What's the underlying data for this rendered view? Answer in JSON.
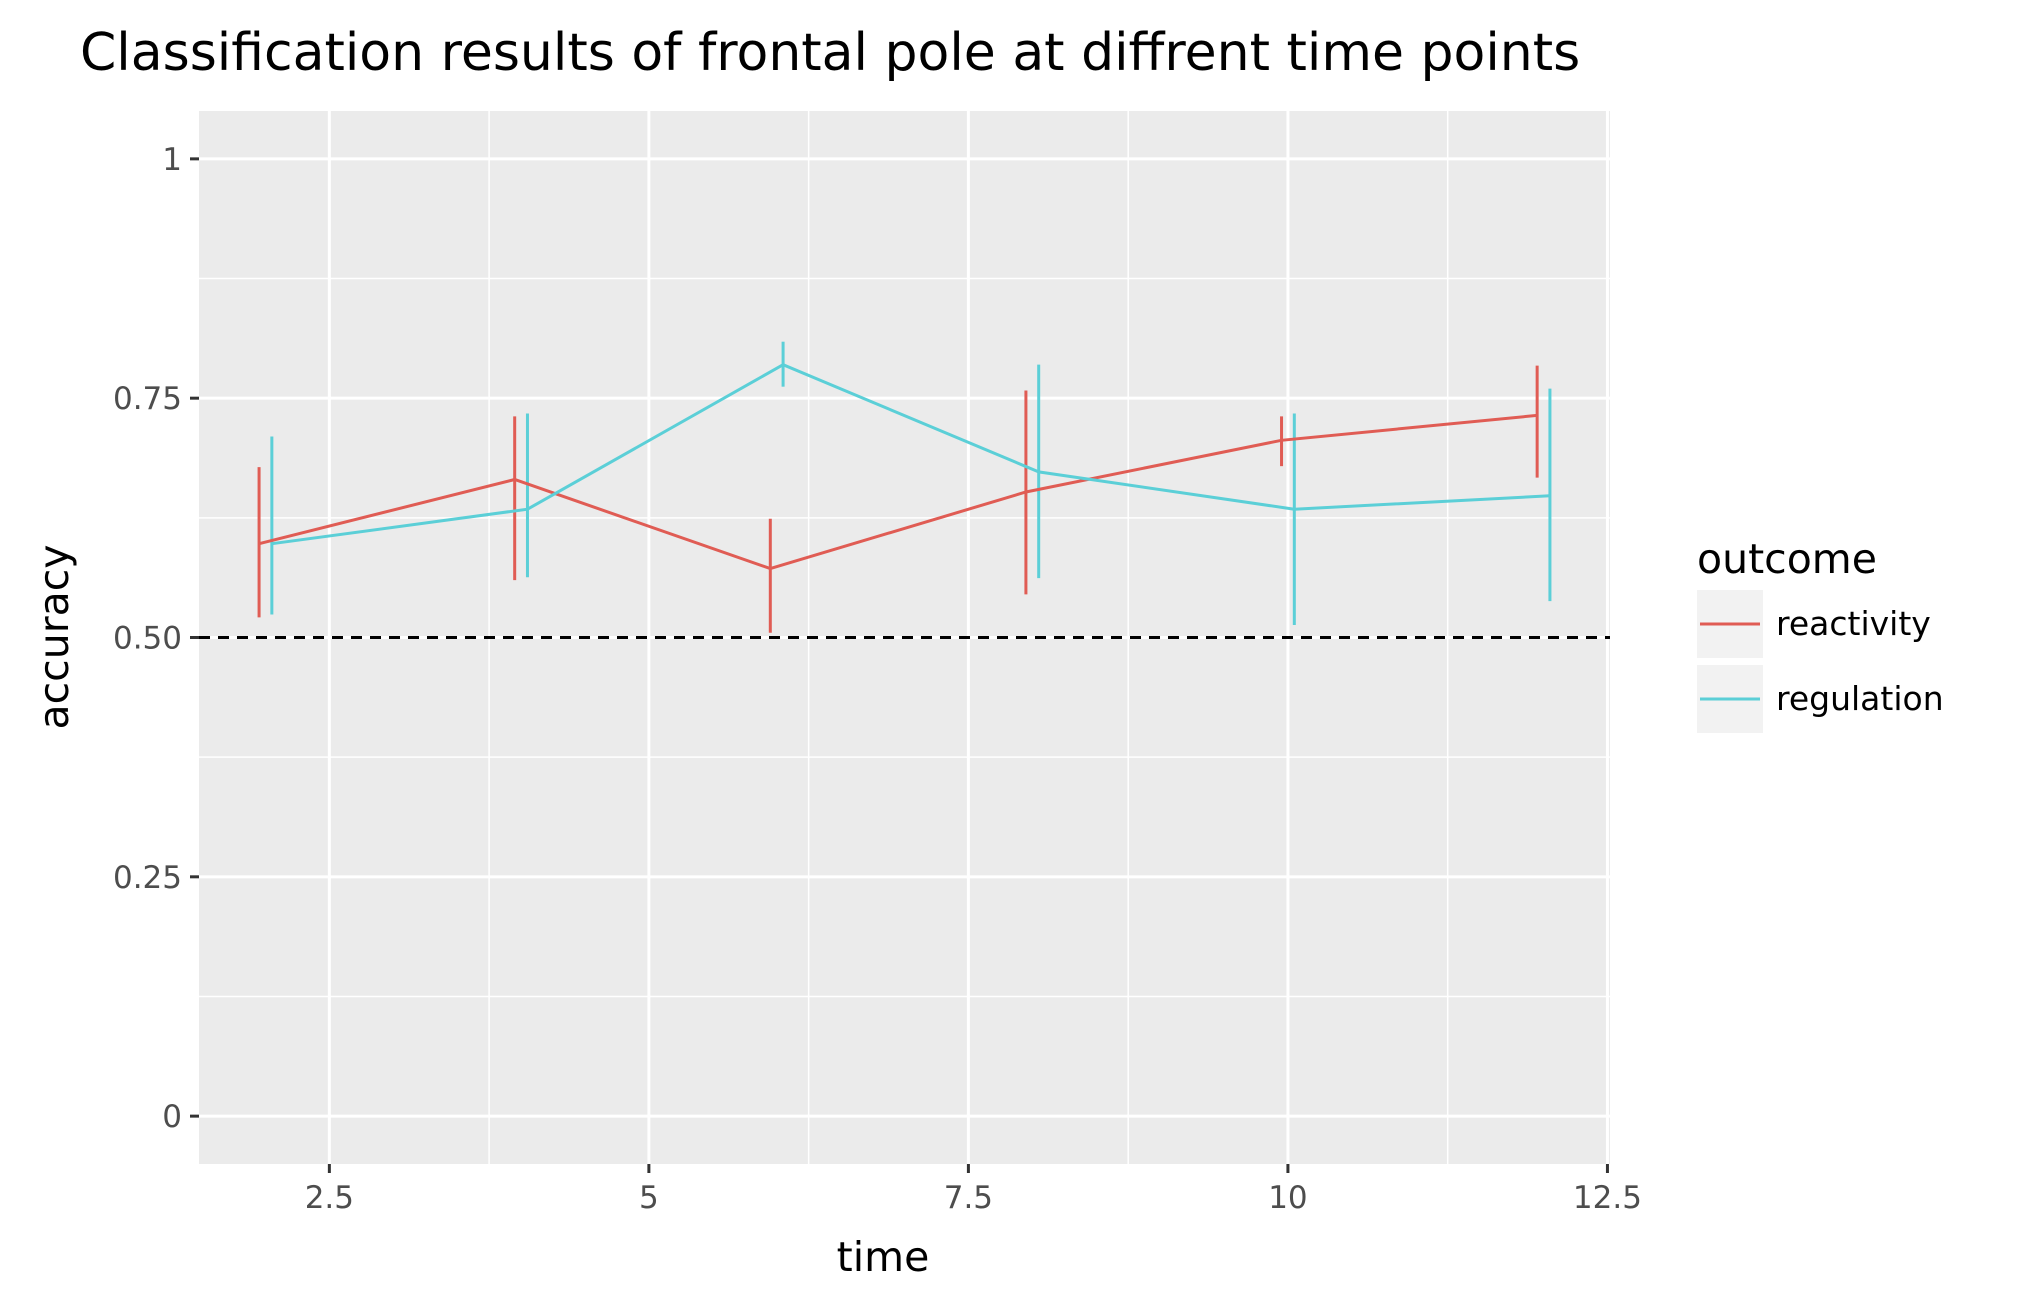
{
  "chart_data": {
    "type": "line",
    "title": "Classification results of frontal pole at diffrent time points",
    "xlabel": "time",
    "ylabel": "accuracy",
    "xlim": [
      1.48,
      12.52
    ],
    "ylim": [
      -0.05,
      1.05
    ],
    "x_ticks": [
      2.5,
      5,
      7.5,
      10,
      12.5
    ],
    "x_tick_labels": [
      "2.5",
      "5",
      "7.5",
      "10",
      "12.5"
    ],
    "y_ticks": [
      0,
      0.25,
      0.5,
      0.75,
      1
    ],
    "y_tick_labels": [
      "0",
      "0.25",
      "0.50",
      "0.75",
      "1"
    ],
    "grid": true,
    "reference_line": {
      "y": 0.5,
      "style": "dashed",
      "color": "#000000"
    },
    "legend": {
      "title": "outcome",
      "position": "right"
    },
    "series": [
      {
        "name": "reactivity",
        "color": "#e05c54",
        "x": [
          1.95,
          3.95,
          5.95,
          7.95,
          9.95,
          11.95
        ],
        "y": [
          0.598,
          0.665,
          0.572,
          0.652,
          0.706,
          0.732
        ],
        "ymin": [
          0.521,
          0.56,
          0.505,
          0.545,
          0.679,
          0.667
        ],
        "ymax": [
          0.678,
          0.731,
          0.624,
          0.758,
          0.731,
          0.784
        ]
      },
      {
        "name": "regulation",
        "color": "#5bcfd7",
        "x": [
          2.05,
          4.05,
          6.05,
          8.05,
          10.05,
          12.05
        ],
        "y": [
          0.598,
          0.634,
          0.785,
          0.673,
          0.634,
          0.648
        ],
        "ymin": [
          0.524,
          0.563,
          0.762,
          0.562,
          0.513,
          0.538
        ],
        "ymax": [
          0.71,
          0.734,
          0.809,
          0.785,
          0.734,
          0.76
        ]
      }
    ]
  }
}
